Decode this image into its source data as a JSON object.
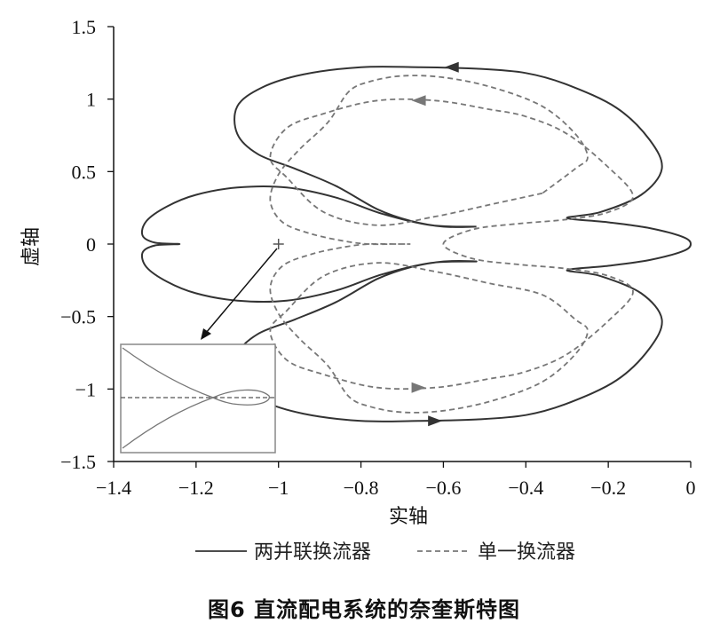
{
  "caption": "图6  直流配电系统的奈奎斯特图",
  "chart_data": {
    "type": "line",
    "xlabel": "实轴",
    "ylabel": "虚轴",
    "xlim": [
      -1.4,
      0
    ],
    "ylim": [
      -1.5,
      1.5
    ],
    "xticks": [
      -1.4,
      -1.2,
      -1,
      -0.8,
      -0.6,
      -0.4,
      -0.2,
      0
    ],
    "yticks": [
      -1.5,
      -1,
      -0.5,
      0,
      0.5,
      1,
      1.5
    ],
    "xtick_labels": [
      "−1.4",
      "−1.2",
      "−1",
      "−0.8",
      "−0.6",
      "−0.4",
      "−0.2",
      "0"
    ],
    "ytick_labels": [
      "−1.5",
      "−1",
      "−0.5",
      "0",
      "0.5",
      "1",
      "1.5"
    ],
    "legend_position": "bottom",
    "critical_point": {
      "x": -1,
      "y": 0,
      "marker": "+"
    },
    "series": [
      {
        "name": "两并联换流器",
        "style": "solid",
        "color": "#333333",
        "x": [
          -0.52,
          -0.6,
          -0.68,
          -0.76,
          -0.86,
          -0.96,
          -1.05,
          -1.1,
          -1.1,
          -1.04,
          -0.94,
          -0.8,
          -0.66,
          -0.52,
          -0.4,
          -0.3,
          -0.18,
          -0.1,
          -0.07,
          -0.12,
          -0.22,
          -0.3,
          -0.2,
          -0.1,
          -0.02,
          0.0,
          -0.02,
          -0.1,
          -0.2,
          -0.3,
          -0.22,
          -0.12,
          -0.07,
          -0.1,
          -0.18,
          -0.3,
          -0.4,
          -0.52,
          -0.66,
          -0.8,
          -0.94,
          -1.04,
          -1.1,
          -1.1,
          -1.05,
          -0.96,
          -0.86,
          -0.76,
          -0.68,
          -0.6,
          -0.52,
          -0.63,
          -0.75,
          -0.86,
          -0.98,
          -1.1,
          -1.2,
          -1.27,
          -1.32,
          -1.33,
          -1.3,
          -1.24,
          -1.3,
          -1.33,
          -1.32,
          -1.27,
          -1.2,
          -1.1,
          -0.98,
          -0.86,
          -0.75,
          -0.63,
          -0.52
        ],
        "y": [
          0.12,
          0.12,
          0.16,
          0.24,
          0.4,
          0.52,
          0.62,
          0.76,
          0.95,
          1.08,
          1.17,
          1.22,
          1.22,
          1.21,
          1.18,
          1.1,
          0.94,
          0.72,
          0.52,
          0.34,
          0.22,
          0.18,
          0.15,
          0.11,
          0.05,
          0.0,
          -0.05,
          -0.11,
          -0.15,
          -0.18,
          -0.22,
          -0.34,
          -0.52,
          -0.72,
          -0.94,
          -1.1,
          -1.18,
          -1.21,
          -1.22,
          -1.22,
          -1.17,
          -1.08,
          -0.95,
          -0.76,
          -0.62,
          -0.52,
          -0.4,
          -0.24,
          -0.16,
          -0.12,
          -0.12,
          -0.13,
          -0.21,
          -0.32,
          -0.39,
          -0.39,
          -0.34,
          -0.26,
          -0.16,
          -0.06,
          -0.01,
          0.0,
          0.01,
          0.06,
          0.16,
          0.26,
          0.34,
          0.39,
          0.39,
          0.32,
          0.21,
          0.13,
          0.12
        ],
        "arrows": [
          {
            "x": -0.58,
            "y": 1.22,
            "direction": "left"
          },
          {
            "x": -0.62,
            "y": -1.22,
            "direction": "right"
          }
        ]
      },
      {
        "name": "单一换流器",
        "style": "dashed",
        "color": "#777777",
        "x": [
          -0.36,
          -0.49,
          -0.62,
          -0.76,
          -0.89,
          -0.98,
          -1.02,
          -0.98,
          -0.89,
          -0.76,
          -0.62,
          -0.49,
          -0.4,
          -0.3,
          -0.2,
          -0.14,
          -0.2,
          -0.3,
          -0.42,
          -0.53,
          -0.6,
          -0.53,
          -0.42,
          -0.3,
          -0.2,
          -0.14,
          -0.2,
          -0.3,
          -0.4,
          -0.49,
          -0.62,
          -0.76,
          -0.89,
          -0.98,
          -1.02,
          -0.98,
          -0.89,
          -0.76,
          -0.62,
          -0.49,
          -0.36,
          -0.28,
          -0.25,
          -0.28,
          -0.36,
          -0.48,
          -0.6,
          -0.7,
          -0.78,
          -0.83,
          -0.88,
          -0.95,
          -1.0,
          -1.02,
          -0.99,
          -0.92,
          -0.84,
          -0.78,
          -0.72,
          -0.68,
          -0.72,
          -0.78,
          -0.84,
          -0.92,
          -0.99,
          -1.02,
          -1.0,
          -0.95,
          -0.88,
          -0.83,
          -0.78,
          -0.7,
          -0.6,
          -0.48,
          -0.36,
          -0.28,
          -0.25,
          -0.28,
          -0.36
        ],
        "y": [
          0.35,
          0.27,
          0.19,
          0.13,
          0.22,
          0.46,
          0.6,
          0.8,
          0.9,
          0.99,
          0.99,
          0.93,
          0.88,
          0.76,
          0.53,
          0.33,
          0.22,
          0.17,
          0.14,
          0.1,
          0.0,
          -0.1,
          -0.14,
          -0.17,
          -0.22,
          -0.33,
          -0.53,
          -0.76,
          -0.88,
          -0.93,
          -0.99,
          -0.99,
          -0.9,
          -0.8,
          -0.6,
          -0.46,
          -0.22,
          -0.13,
          -0.19,
          -0.27,
          -0.35,
          -0.52,
          -0.6,
          -0.76,
          -0.95,
          -1.08,
          -1.15,
          -1.16,
          -1.12,
          -1.05,
          -0.84,
          -0.65,
          -0.48,
          -0.3,
          -0.15,
          -0.07,
          -0.02,
          0.0,
          0.0,
          0.0,
          0.0,
          0.0,
          0.02,
          0.07,
          0.15,
          0.3,
          0.48,
          0.65,
          0.84,
          1.05,
          1.12,
          1.16,
          1.15,
          1.08,
          0.95,
          0.76,
          0.6,
          0.52,
          0.35
        ],
        "arrows": [
          {
            "x": -0.66,
            "y": 0.99,
            "direction": "left"
          },
          {
            "x": -0.66,
            "y": -0.99,
            "direction": "right"
          }
        ]
      }
    ]
  }
}
